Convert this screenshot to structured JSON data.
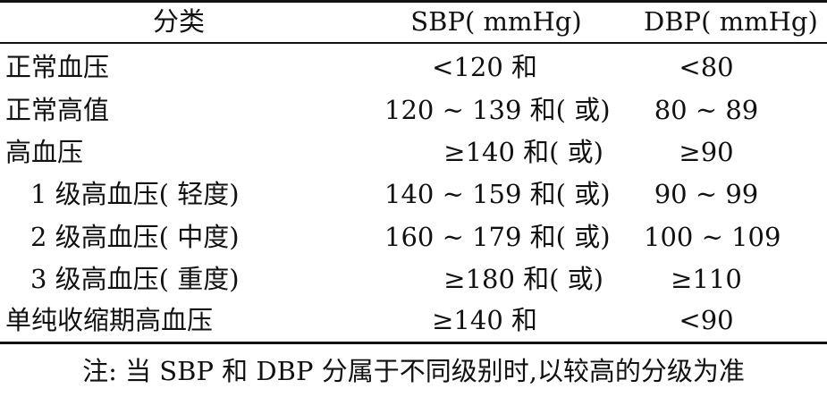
{
  "header": {
    "category": "分类",
    "sbp": "SBP( mmHg)",
    "dbp": "DBP( mmHg)"
  },
  "rows": [
    {
      "category": "正常血压",
      "sbp": "<120 和",
      "dbp": "<80",
      "indent": false
    },
    {
      "category": "正常高值",
      "sbp": "120 ~ 139 和( 或)",
      "dbp": "80 ~ 89",
      "indent": false
    },
    {
      "category": "高血压",
      "sbp": "≥140 和( 或)",
      "dbp": "≥90",
      "indent": false
    },
    {
      "category": "1 级高血压( 轻度)",
      "sbp": "140 ~ 159 和( 或)",
      "dbp": "90 ~ 99",
      "indent": true
    },
    {
      "category": "2 级高血压( 中度)",
      "sbp": "160 ~ 179 和( 或)",
      "dbp": "100 ~ 109",
      "indent": true
    },
    {
      "category": "3 级高血压( 重度)",
      "sbp": "≥180 和( 或)",
      "dbp": "≥110",
      "indent": true
    },
    {
      "category": "单纯收缩期高血压",
      "sbp": "≥140 和",
      "dbp": "<90",
      "indent": false
    }
  ],
  "note": "注: 当 SBP 和 DBP 分属于不同级别时,以较高的分级为准"
}
